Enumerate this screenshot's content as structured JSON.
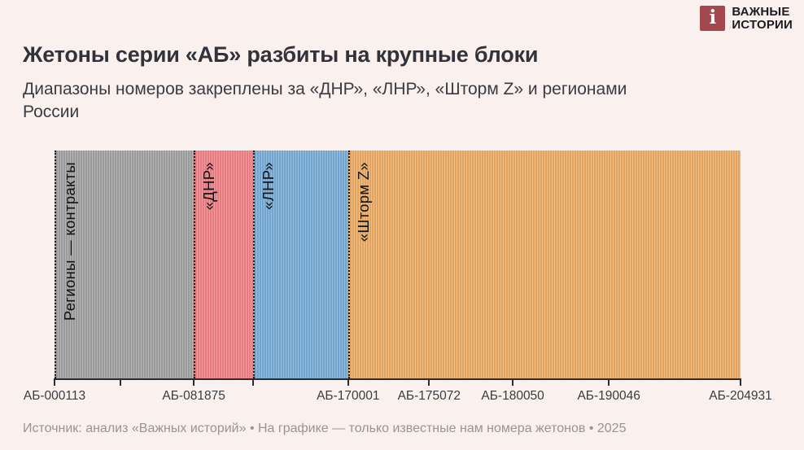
{
  "logo": {
    "icon": "i-mark",
    "line1": "ВАЖНЫЕ",
    "line2": "ИСТОРИИ",
    "brand_color": "#a3494d"
  },
  "header": {
    "title": "Жетоны серии «АБ» разбиты на крупные блоки",
    "subtitle_line1": "Диапазоны номеров закреплены за «ДНР», «ЛНР», «Шторм Z» и регионами",
    "subtitle_line2": "России"
  },
  "chart_data": {
    "type": "bar",
    "subtype": "segmented-range-strip",
    "description_axis": "token numbers of series АБ, only known tokens plotted (ordinal axis)",
    "range_start": "АБ-000113",
    "range_end": "АБ-204931",
    "segments": [
      {
        "id": "regions-contracts",
        "label": "Регионы — контракты",
        "from": "АБ-000113",
        "to": "АБ-081875",
        "start_pct": 0,
        "end_pct": 20.3,
        "stripe_dark": "#9a9a9a",
        "stripe_light": "#b5b5b5"
      },
      {
        "id": "dnr",
        "label": "«ДНР»",
        "from": "АБ-081875",
        "to": "",
        "start_pct": 20.3,
        "end_pct": 28.9,
        "stripe_dark": "#e67c82",
        "stripe_light": "#f19ba0"
      },
      {
        "id": "lnr",
        "label": "«ЛНР»",
        "from": "",
        "to": "АБ-170001",
        "start_pct": 28.9,
        "end_pct": 42.8,
        "stripe_dark": "#72a4cd",
        "stripe_light": "#94bedd"
      },
      {
        "id": "storm-z",
        "label": "«Шторм Z»",
        "from": "АБ-170001",
        "to": "АБ-204931",
        "start_pct": 42.8,
        "end_pct": 100,
        "stripe_dark": "#e1a35e",
        "stripe_light": "#eec08a"
      }
    ],
    "x_ticks": [
      {
        "label": "АБ-000113",
        "pct": 0
      },
      {
        "label": "",
        "pct": 9.6
      },
      {
        "label": "АБ-081875",
        "pct": 20.3
      },
      {
        "label": "",
        "pct": 28.9
      },
      {
        "label": "АБ-170001",
        "pct": 42.8
      },
      {
        "label": "АБ-175072",
        "pct": 54.6
      },
      {
        "label": "АБ-180050",
        "pct": 66.8
      },
      {
        "label": "АБ-190046",
        "pct": 80.8
      },
      {
        "label": "АБ-204931",
        "pct": 100
      }
    ],
    "grid": false,
    "legend": "none"
  },
  "footer": {
    "source": "Источник: анализ «Важных историй» • На графике — только известные нам номера жетонов • 2025"
  },
  "colors": {
    "background": "#faf1ef",
    "title_text": "#32323a",
    "axis": "#2b2b30",
    "footer_text": "#9d9292"
  }
}
